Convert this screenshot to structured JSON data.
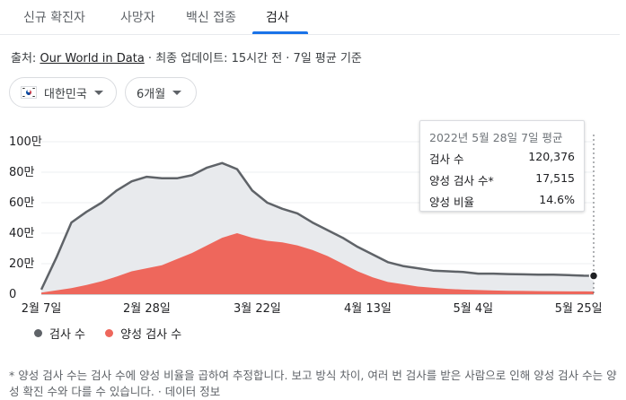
{
  "tabs": [
    {
      "label": "신규 확진자"
    },
    {
      "label": "사망자"
    },
    {
      "label": "백신 접종"
    },
    {
      "label": "검사"
    }
  ],
  "source": {
    "prefix": "출처: ",
    "link": "Our World in Data",
    "suffix": " · 최종 업데이트: 15시간 전 · 7일 평균 기준"
  },
  "filters": {
    "country": "대한민국",
    "period": "6개월"
  },
  "tooltip": {
    "title": "2022년 5월 28일 7일 평균",
    "rows": [
      {
        "label": "검사 수",
        "value": "120,376"
      },
      {
        "label": "양성 검사 수*",
        "value": "17,515"
      },
      {
        "label": "양성 비율",
        "value": "14.6%"
      }
    ]
  },
  "legend": {
    "tests": "검사 수",
    "positive": "양성 검사 수"
  },
  "footnote": "* 양성 검사 수는 검사 수에 양성 비율을 곱하여 추정합니다. 보고 방식 차이, 여러 번 검사를 받은 사람으로 인해 양성 검사 수는 양성 확진 수와 다를 수 있습니다. · 데이터 정보",
  "colors": {
    "tests_line": "#5f6368",
    "tests_fill": "#e8eaed",
    "positive_fill": "#ee675c",
    "accent": "#1a73e8"
  },
  "chart_data": {
    "type": "area",
    "y_ticks": [
      "0",
      "20만",
      "40만",
      "60만",
      "80만",
      "100만"
    ],
    "ylim": [
      0,
      1000000
    ],
    "x_ticks": [
      "2월 7일",
      "2월 28일",
      "3월 22일",
      "4월 13일",
      "5월 4일",
      "5월 25일"
    ],
    "x_tick_days": [
      0,
      21,
      43,
      65,
      86,
      107
    ],
    "x_range_days": [
      0,
      110
    ],
    "series": [
      {
        "name": "검사 수",
        "x_days": [
          0,
          3,
          6,
          9,
          12,
          15,
          18,
          21,
          24,
          27,
          30,
          33,
          36,
          39,
          42,
          45,
          48,
          51,
          54,
          57,
          60,
          63,
          66,
          69,
          72,
          75,
          78,
          81,
          84,
          87,
          90,
          93,
          96,
          99,
          102,
          105,
          108,
          110
        ],
        "values": [
          30000,
          240000,
          470000,
          540000,
          600000,
          680000,
          740000,
          770000,
          760000,
          760000,
          780000,
          830000,
          860000,
          820000,
          680000,
          600000,
          560000,
          530000,
          470000,
          420000,
          370000,
          310000,
          260000,
          210000,
          185000,
          170000,
          155000,
          150000,
          145000,
          135000,
          135000,
          132000,
          130000,
          128000,
          128000,
          125000,
          121000,
          120376
        ]
      },
      {
        "name": "양성 검사 수",
        "x_days": [
          0,
          3,
          6,
          9,
          12,
          15,
          18,
          21,
          24,
          27,
          30,
          33,
          36,
          39,
          42,
          45,
          48,
          51,
          54,
          57,
          60,
          63,
          66,
          69,
          72,
          75,
          78,
          81,
          84,
          87,
          90,
          93,
          96,
          99,
          102,
          105,
          108,
          110
        ],
        "values": [
          10000,
          25000,
          40000,
          60000,
          85000,
          115000,
          150000,
          170000,
          190000,
          230000,
          270000,
          320000,
          370000,
          400000,
          370000,
          350000,
          340000,
          320000,
          290000,
          250000,
          200000,
          150000,
          110000,
          80000,
          65000,
          50000,
          42000,
          35000,
          30000,
          27000,
          24000,
          22000,
          21000,
          20000,
          19000,
          18500,
          18000,
          17515
        ]
      }
    ]
  }
}
